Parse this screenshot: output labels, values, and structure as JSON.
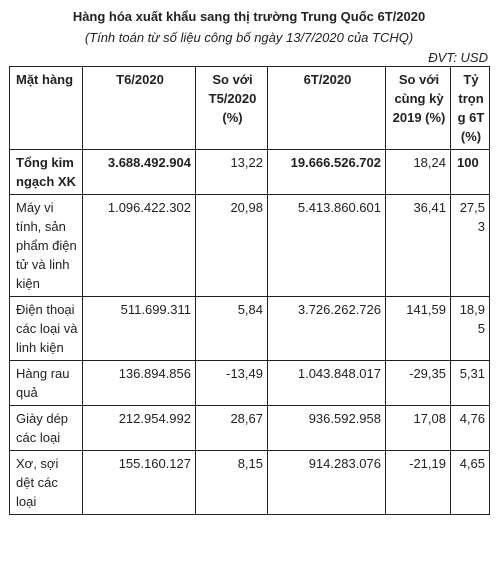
{
  "title": "Hàng hóa xuất khẩu sang thị trường Trung Quốc 6T/2020",
  "subtitle": "(Tính toán từ số liệu công bố ngày 13/7/2020 của TCHQ)",
  "unit": "ĐVT: USD",
  "table": {
    "headers": {
      "item": "Mặt hàng",
      "t6": "T6/2020",
      "vs_t5": "So với T5/2020 (%)",
      "m6": "6T/2020",
      "vs_2019": "So với cùng kỳ 2019 (%)",
      "share": "Tỷ trọng 6T (%)"
    },
    "rows": [
      {
        "item": "Tổng kim ngạch XK",
        "t6": "3.688.492.904",
        "vs_t5": "13,22",
        "m6": "19.666.526.702",
        "vs_2019": "18,24",
        "share": "100"
      },
      {
        "item": "Máy vi tính, sản phẩm điện tử và linh kiện",
        "t6": "1.096.422.302",
        "vs_t5": "20,98",
        "m6": "5.413.860.601",
        "vs_2019": "36,41",
        "share": "27,53"
      },
      {
        "item": "Điện thoại các loại và linh kiện",
        "t6": "511.699.311",
        "vs_t5": "5,84",
        "m6": "3.726.262.726",
        "vs_2019": "141,59",
        "share": "18,95"
      },
      {
        "item": "Hàng rau quả",
        "t6": "136.894.856",
        "vs_t5": "-13,49",
        "m6": "1.043.848.017",
        "vs_2019": "-29,35",
        "share": "5,31"
      },
      {
        "item": "Giày dép các loại",
        "t6": "212.954.992",
        "vs_t5": "28,67",
        "m6": "936.592.958",
        "vs_2019": "17,08",
        "share": "4,76"
      },
      {
        "item": "Xơ, sợi dệt các loại",
        "t6": "155.160.127",
        "vs_t5": "8,15",
        "m6": "914.283.076",
        "vs_2019": "-21,19",
        "share": "4,65"
      }
    ]
  }
}
